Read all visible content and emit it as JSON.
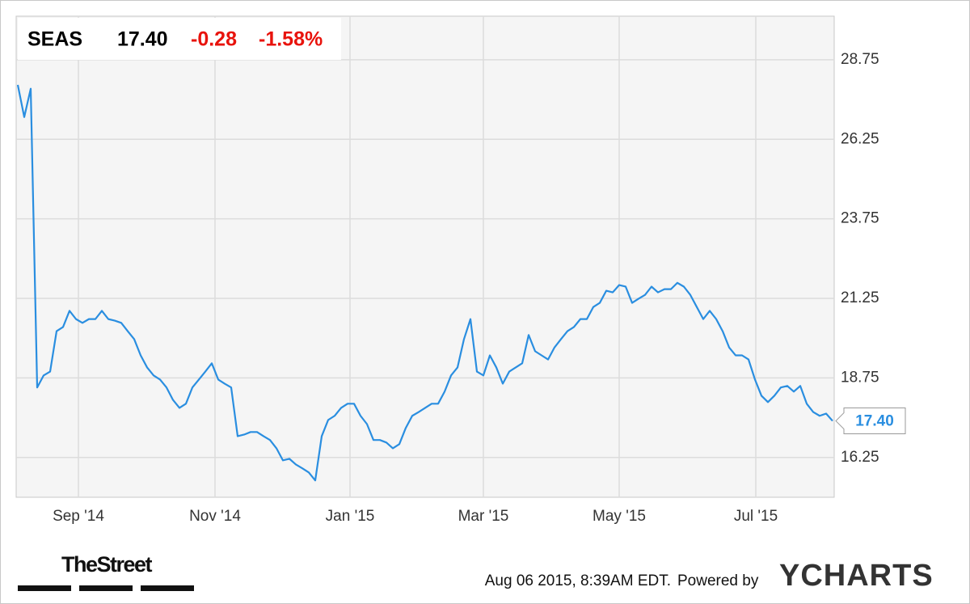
{
  "chart_data": {
    "type": "line",
    "header": {
      "price": "17.40",
      "change": "-0.28",
      "change_pct": "-1.58%"
    },
    "last_value_label": "17.40",
    "series": [
      {
        "name": "SEAS",
        "color": "#2a8ee0",
        "values": [
          27.96,
          26.95,
          27.84,
          18.45,
          18.83,
          18.95,
          20.22,
          20.35,
          20.86,
          20.6,
          20.48,
          20.6,
          20.6,
          20.86,
          20.6,
          20.55,
          20.48,
          20.22,
          19.97,
          19.46,
          19.08,
          18.83,
          18.7,
          18.45,
          18.06,
          17.81,
          17.94,
          18.45,
          18.7,
          18.95,
          19.21,
          18.7,
          18.57,
          18.45,
          16.92,
          16.97,
          17.05,
          17.05,
          16.92,
          16.8,
          16.54,
          16.16,
          16.21,
          16.03,
          15.91,
          15.78,
          15.53,
          16.92,
          17.43,
          17.56,
          17.81,
          17.94,
          17.94,
          17.56,
          17.3,
          16.8,
          16.8,
          16.72,
          16.54,
          16.67,
          17.18,
          17.56,
          17.68,
          17.81,
          17.94,
          17.94,
          18.32,
          18.83,
          19.08,
          19.97,
          20.6,
          18.95,
          18.83,
          19.46,
          19.08,
          18.57,
          18.95,
          19.08,
          19.21,
          20.1,
          19.59,
          19.46,
          19.33,
          19.71,
          19.97,
          20.22,
          20.35,
          20.6,
          20.6,
          20.98,
          21.11,
          21.49,
          21.44,
          21.67,
          21.62,
          21.11,
          21.24,
          21.36,
          21.62,
          21.44,
          21.54,
          21.54,
          21.74,
          21.62,
          21.36,
          20.98,
          20.6,
          20.86,
          20.6,
          20.22,
          19.71,
          19.46,
          19.46,
          19.33,
          18.7,
          18.19,
          17.99,
          18.19,
          18.45,
          18.5,
          18.32,
          18.5,
          17.94,
          17.68,
          17.56,
          17.63,
          17.4
        ]
      }
    ],
    "xlim": [
      0,
      126
    ],
    "xticks": [
      {
        "value": 9.375,
        "label": "Sep '14"
      },
      {
        "value": 30.5,
        "label": "Nov '14"
      },
      {
        "value": 51.375,
        "label": "Jan '15"
      },
      {
        "value": 72,
        "label": "Mar '15"
      },
      {
        "value": 93,
        "label": "May '15"
      },
      {
        "value": 114.125,
        "label": "Jul '15"
      }
    ],
    "ylim": [
      15,
      30.12
    ],
    "yticks": [
      16.25,
      18.75,
      21.25,
      23.75,
      26.25,
      28.75
    ],
    "grid": true
  },
  "footer": {
    "brand": "TheStreet",
    "timestamp": "Aug 06 2015, 8:39AM EDT.",
    "powered": "Powered by",
    "logo": "YCHARTS"
  }
}
